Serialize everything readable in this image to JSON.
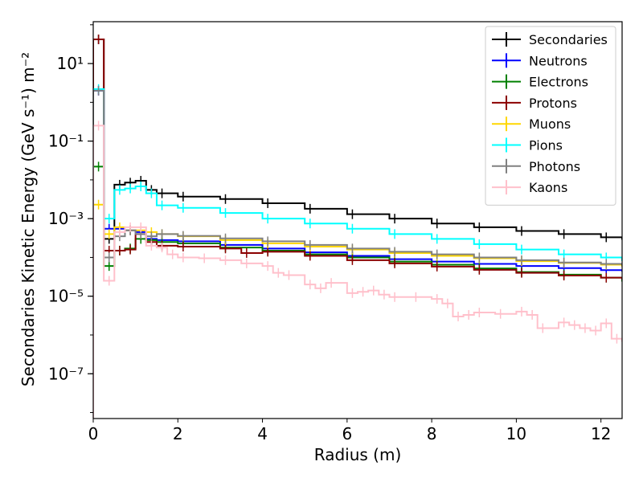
{
  "chart_data": {
    "type": "step-histogram",
    "xlabel": "Radius (m)",
    "ylabel": "Secondaries Kinetic Energy (GeV s⁻¹) m⁻²",
    "xlim": [
      0,
      12.5
    ],
    "ylim": [
      7e-09,
      120
    ],
    "yscale": "log",
    "legend_position": "top-right",
    "x_ticks": [
      0,
      2,
      4,
      6,
      8,
      10,
      12
    ],
    "x_tick_labels": [
      "0",
      "2",
      "4",
      "6",
      "8",
      "10",
      "12"
    ],
    "y_ticks": [
      1e-07,
      1e-05,
      0.001,
      0.1,
      10
    ],
    "y_tick_labels": [
      "10⁻⁷",
      "10⁻⁵",
      "10⁻³",
      "10⁻¹",
      "10¹"
    ],
    "bin_width": 0.25,
    "series": [
      {
        "name": "Secondaries",
        "color": "#000000",
        "points": [
          [
            0,
            42
          ],
          [
            0.25,
            0.0003
          ],
          [
            0.5,
            0.0075
          ],
          [
            0.75,
            0.0085
          ],
          [
            1.0,
            0.0095
          ],
          [
            1.25,
            0.0055
          ],
          [
            1.5,
            0.0045
          ],
          [
            2.0,
            0.0037
          ],
          [
            3,
            0.0032
          ],
          [
            4,
            0.0025
          ],
          [
            5,
            0.0018
          ],
          [
            6,
            0.0013
          ],
          [
            7,
            0.001
          ],
          [
            8,
            0.00075
          ],
          [
            9,
            0.0006
          ],
          [
            10,
            0.00048
          ],
          [
            11,
            0.0004
          ],
          [
            12,
            0.00033
          ],
          [
            12.5,
            0.0003
          ]
        ]
      },
      {
        "name": "Neutrons",
        "color": "#0000ff",
        "points": [
          [
            0,
            2.0
          ],
          [
            0.25,
            0.00055
          ],
          [
            0.75,
            0.0005
          ],
          [
            1.0,
            0.00045
          ],
          [
            1.25,
            0.0003
          ],
          [
            1.5,
            0.00028
          ],
          [
            2.0,
            0.00026
          ],
          [
            3,
            0.00021
          ],
          [
            4,
            0.00017
          ],
          [
            5,
            0.000135
          ],
          [
            6,
            0.00011
          ],
          [
            7,
            9e-05
          ],
          [
            8,
            7.8e-05
          ],
          [
            9,
            6.8e-05
          ],
          [
            10,
            6e-05
          ],
          [
            11,
            5.3e-05
          ],
          [
            12,
            4.7e-05
          ],
          [
            12.5,
            4.5e-05
          ]
        ]
      },
      {
        "name": "Electrons",
        "color": "#008000",
        "points": [
          [
            0,
            0.022
          ],
          [
            0.25,
            6e-05
          ],
          [
            0.5,
            0.00015
          ],
          [
            0.75,
            0.00017
          ],
          [
            1.0,
            0.0003
          ],
          [
            1.25,
            0.00028
          ],
          [
            1.5,
            0.00025
          ],
          [
            2.0,
            0.00023
          ],
          [
            3,
            0.00018
          ],
          [
            4,
            0.00015
          ],
          [
            5,
            0.00012
          ],
          [
            6,
            0.0001
          ],
          [
            7,
            7.8e-05
          ],
          [
            8,
            6.5e-05
          ],
          [
            9,
            5.2e-05
          ],
          [
            10,
            4.2e-05
          ],
          [
            11,
            3.6e-05
          ],
          [
            12,
            3e-05
          ],
          [
            12.5,
            2.5e-05
          ]
        ]
      },
      {
        "name": "Protons",
        "color": "#8b0000",
        "points": [
          [
            0,
            42
          ],
          [
            0.25,
            0.00015
          ],
          [
            0.5,
            0.00015
          ],
          [
            0.75,
            0.00016
          ],
          [
            1.0,
            0.0004
          ],
          [
            1.25,
            0.00025
          ],
          [
            1.5,
            0.0002
          ],
          [
            2.0,
            0.00019
          ],
          [
            3,
            0.00017
          ],
          [
            3.5,
            0.00013
          ],
          [
            4,
            0.00014
          ],
          [
            5,
            0.00011
          ],
          [
            6,
            8.5e-05
          ],
          [
            7,
            7e-05
          ],
          [
            8,
            5.8e-05
          ],
          [
            9,
            4.8e-05
          ],
          [
            10,
            4e-05
          ],
          [
            11,
            3.4e-05
          ],
          [
            12,
            3e-05
          ],
          [
            12.5,
            2.8e-05
          ]
        ]
      },
      {
        "name": "Muons",
        "color": "#ffd700",
        "points": [
          [
            0,
            0.0023
          ],
          [
            0.25,
            0.0004
          ],
          [
            0.5,
            0.0006
          ],
          [
            0.75,
            0.0005
          ],
          [
            1.0,
            0.0005
          ],
          [
            1.25,
            0.00045
          ],
          [
            1.5,
            0.0004
          ],
          [
            2.0,
            0.00035
          ],
          [
            3,
            0.00028
          ],
          [
            4,
            0.00023
          ],
          [
            5,
            0.00019
          ],
          [
            6,
            0.00016
          ],
          [
            7,
            0.00013
          ],
          [
            8,
            0.00011
          ],
          [
            9,
            9.5e-05
          ],
          [
            10,
            8e-05
          ],
          [
            11,
            7.2e-05
          ],
          [
            12,
            6.5e-05
          ],
          [
            12.5,
            6e-05
          ]
        ]
      },
      {
        "name": "Pions",
        "color": "#00ffff",
        "points": [
          [
            0,
            2.2
          ],
          [
            0.25,
            0.001
          ],
          [
            0.5,
            0.0055
          ],
          [
            0.75,
            0.006
          ],
          [
            1.0,
            0.0068
          ],
          [
            1.25,
            0.0045
          ],
          [
            1.5,
            0.0022
          ],
          [
            2.0,
            0.0019
          ],
          [
            3,
            0.0014
          ],
          [
            4,
            0.001
          ],
          [
            5,
            0.00075
          ],
          [
            6,
            0.00055
          ],
          [
            7,
            0.0004
          ],
          [
            8,
            0.0003
          ],
          [
            9,
            0.00022
          ],
          [
            10,
            0.00016
          ],
          [
            11,
            0.00012
          ],
          [
            12,
            0.0001
          ],
          [
            12.5,
            8.5e-05
          ]
        ]
      },
      {
        "name": "Photons",
        "color": "#808080",
        "points": [
          [
            0,
            2.0
          ],
          [
            0.25,
            0.0001
          ],
          [
            0.5,
            0.00035
          ],
          [
            0.75,
            0.0005
          ],
          [
            1.0,
            0.0004
          ],
          [
            1.25,
            0.00035
          ],
          [
            1.5,
            0.0004
          ],
          [
            2.0,
            0.00036
          ],
          [
            3,
            0.00031
          ],
          [
            4,
            0.00026
          ],
          [
            5,
            0.00021
          ],
          [
            6,
            0.00017
          ],
          [
            7,
            0.00014
          ],
          [
            8,
            0.00012
          ],
          [
            9,
            0.0001
          ],
          [
            10,
            8.5e-05
          ],
          [
            11,
            7.4e-05
          ],
          [
            12,
            6.8e-05
          ],
          [
            12.5,
            6.5e-05
          ]
        ]
      },
      {
        "name": "Kaons",
        "color": "#ffc0cb",
        "points": [
          [
            0,
            0.25
          ],
          [
            0.25,
            2.5e-05
          ],
          [
            0.5,
            0.00045
          ],
          [
            0.75,
            0.0006
          ],
          [
            1.0,
            0.0006
          ],
          [
            1.25,
            0.0002
          ],
          [
            1.5,
            0.00018
          ],
          [
            1.75,
            0.00012
          ],
          [
            2.0,
            0.0001
          ],
          [
            2.5,
            9.5e-05
          ],
          [
            3.0,
            8.5e-05
          ],
          [
            3.5,
            7e-05
          ],
          [
            4.0,
            6e-05
          ],
          [
            4.25,
            4e-05
          ],
          [
            4.5,
            3.5e-05
          ],
          [
            5.0,
            2e-05
          ],
          [
            5.25,
            1.6e-05
          ],
          [
            5.5,
            2.2e-05
          ],
          [
            6.0,
            1.2e-05
          ],
          [
            6.25,
            1.3e-05
          ],
          [
            6.5,
            1.4e-05
          ],
          [
            6.75,
            1.1e-05
          ],
          [
            7.0,
            9.5e-06
          ],
          [
            7.5,
            9.5e-06
          ],
          [
            8.0,
            8.5e-06
          ],
          [
            8.25,
            6.5e-06
          ],
          [
            8.5,
            3e-06
          ],
          [
            8.75,
            3.3e-06
          ],
          [
            9.0,
            3.8e-06
          ],
          [
            9.5,
            3.5e-06
          ],
          [
            10.0,
            4e-06
          ],
          [
            10.25,
            3.3e-06
          ],
          [
            10.5,
            1.5e-06
          ],
          [
            11.0,
            2.1e-06
          ],
          [
            11.25,
            1.8e-06
          ],
          [
            11.5,
            1.5e-06
          ],
          [
            11.75,
            1.3e-06
          ],
          [
            12.0,
            2e-06
          ],
          [
            12.25,
            8e-07
          ],
          [
            12.5,
            7e-07
          ]
        ]
      }
    ]
  }
}
